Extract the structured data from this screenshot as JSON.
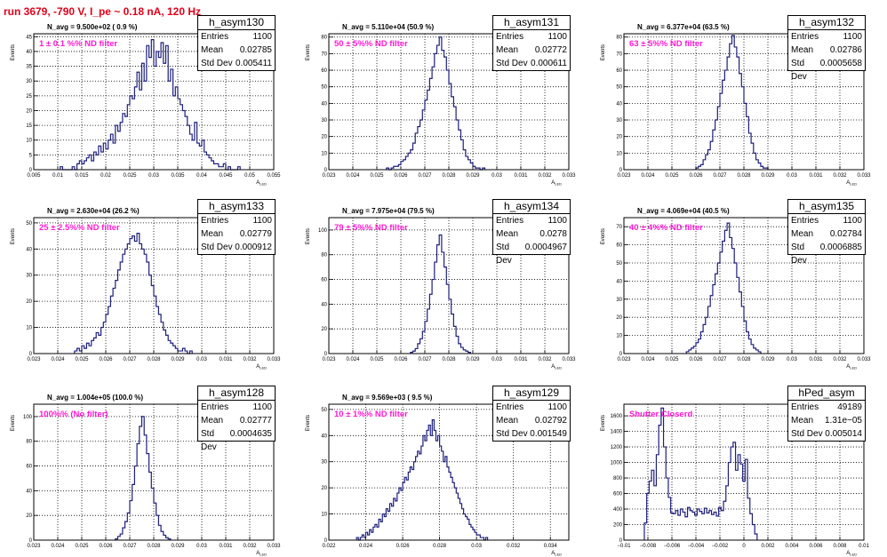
{
  "title": "run 3679,  -790 V, I_pe ~ 0.18 nA, 120 Hz",
  "ytitle": "Events",
  "xtitle": "A",
  "xtitle_sub": "LED",
  "stat_labels": {
    "entries": "Entries",
    "mean": "Mean",
    "std": "Std Dev"
  },
  "colors": {
    "hist": "#1d1f7d",
    "filter": "#ff19d2",
    "title": "#e0001a"
  },
  "chart_data": [
    {
      "type": "bar",
      "name": "h_asym130",
      "navg": "N_avg = 9.500e+02 ( 0.9 %)",
      "filter": "1 ± 0.1 %% ND filter",
      "entries": "1100",
      "mean": "0.02785",
      "std": "0.005411",
      "xlim": [
        0.005,
        0.055
      ],
      "ylim": [
        0,
        46
      ],
      "xticks": [
        0.005,
        0.01,
        0.015,
        0.02,
        0.025,
        0.03,
        0.035,
        0.04,
        0.045,
        0.05,
        0.055
      ],
      "yticks": [
        0,
        5,
        10,
        15,
        20,
        25,
        30,
        35,
        40,
        45
      ],
      "bins": {
        "start": 0.0105,
        "width": 0.0005,
        "counts": [
          1,
          0,
          0,
          0,
          0,
          1,
          0,
          2,
          3,
          2,
          3,
          4,
          5,
          3,
          6,
          5,
          8,
          6,
          9,
          7,
          10,
          12,
          9,
          15,
          13,
          16,
          19,
          18,
          22,
          25,
          24,
          28,
          33,
          27,
          36,
          30,
          42,
          38,
          44,
          35,
          40,
          38,
          43,
          36,
          42,
          30,
          34,
          25,
          28,
          24,
          22,
          20,
          18,
          15,
          12,
          10,
          16,
          9,
          8,
          10,
          6,
          5,
          4,
          3,
          2,
          2,
          1,
          1,
          2,
          0,
          1,
          0,
          0,
          0,
          1
        ]
      }
    },
    {
      "type": "bar",
      "name": "h_asym131",
      "navg": "N_avg = 5.110e+04 (50.9 %)",
      "filter": "50 ± 5%% ND filter",
      "entries": "1100",
      "mean": "0.02772",
      "std": "0.000611",
      "xlim": [
        0.023,
        0.033
      ],
      "ylim": [
        0,
        82
      ],
      "xticks": [
        0.023,
        0.024,
        0.025,
        0.026,
        0.027,
        0.028,
        0.029,
        0.03,
        0.031,
        0.032,
        0.033
      ],
      "yticks": [
        0,
        10,
        20,
        30,
        40,
        50,
        60,
        70,
        80
      ],
      "bins": {
        "start": 0.0254,
        "width": 0.0001,
        "counts": [
          1,
          0,
          1,
          2,
          2,
          3,
          5,
          6,
          8,
          10,
          12,
          16,
          22,
          26,
          30,
          36,
          42,
          48,
          55,
          62,
          70,
          75,
          80,
          72,
          68,
          60,
          52,
          44,
          38,
          30,
          24,
          18,
          12,
          8,
          6,
          4,
          2,
          1,
          1,
          0,
          1
        ]
      }
    },
    {
      "type": "bar",
      "name": "h_asym132",
      "navg": "N_avg = 6.377e+04 (63.5 %)",
      "filter": "63 ± 5%% ND filter",
      "entries": "1100",
      "mean": "0.02786",
      "std": "0.0005658",
      "xlim": [
        0.023,
        0.033
      ],
      "ylim": [
        0,
        82
      ],
      "xticks": [
        0.023,
        0.024,
        0.025,
        0.026,
        0.027,
        0.028,
        0.029,
        0.03,
        0.031,
        0.032,
        0.033
      ],
      "yticks": [
        0,
        10,
        20,
        30,
        40,
        50,
        60,
        70,
        80
      ],
      "bins": {
        "start": 0.026,
        "width": 0.0001,
        "counts": [
          1,
          2,
          3,
          6,
          9,
          12,
          17,
          24,
          30,
          38,
          46,
          54,
          60,
          68,
          76,
          81,
          74,
          68,
          58,
          50,
          40,
          32,
          22,
          16,
          10,
          6,
          4,
          2,
          1,
          1
        ]
      }
    },
    {
      "type": "bar",
      "name": "h_asym133",
      "navg": "N_avg = 2.630e+04 (26.2 %)",
      "filter": "25 ± 2.5%% ND filter",
      "entries": "1100",
      "mean": "0.02779",
      "std": "0.000912",
      "xlim": [
        0.023,
        0.033
      ],
      "ylim": [
        0,
        52
      ],
      "xticks": [
        0.023,
        0.024,
        0.025,
        0.026,
        0.027,
        0.028,
        0.029,
        0.03,
        0.031,
        0.032,
        0.033
      ],
      "yticks": [
        0,
        10,
        20,
        30,
        40,
        50
      ],
      "bins": {
        "start": 0.0247,
        "width": 0.0001,
        "counts": [
          1,
          2,
          1,
          3,
          2,
          4,
          3,
          5,
          6,
          8,
          7,
          10,
          12,
          15,
          18,
          22,
          25,
          28,
          32,
          35,
          38,
          40,
          42,
          44,
          45,
          43,
          46,
          42,
          40,
          38,
          35,
          30,
          26,
          22,
          18,
          15,
          12,
          9,
          7,
          5,
          4,
          3,
          2,
          1,
          1,
          2,
          1,
          0,
          1
        ]
      }
    },
    {
      "type": "bar",
      "name": "h_asym134",
      "navg": "N_avg = 7.975e+04 (79.5 %)",
      "filter": "79 ± 5%% ND filter",
      "entries": "1100",
      "mean": "0.0278",
      "std": "0.0004967",
      "xlim": [
        0.023,
        0.033
      ],
      "ylim": [
        0,
        110
      ],
      "xticks": [
        0.023,
        0.024,
        0.025,
        0.026,
        0.027,
        0.028,
        0.029,
        0.03,
        0.031,
        0.032,
        0.033
      ],
      "yticks": [
        0,
        20,
        40,
        60,
        80,
        100
      ],
      "bins": {
        "start": 0.0264,
        "width": 0.0001,
        "counts": [
          1,
          2,
          4,
          8,
          12,
          18,
          26,
          36,
          48,
          60,
          74,
          88,
          96,
          82,
          70,
          56,
          44,
          32,
          22,
          14,
          8,
          5,
          3,
          2,
          1
        ]
      }
    },
    {
      "type": "bar",
      "name": "h_asym135",
      "navg": "N_avg = 4.069e+04 (40.5 %)",
      "filter": "40 ± 4%% ND filter",
      "entries": "1100",
      "mean": "0.02784",
      "std": "0.0006885",
      "xlim": [
        0.023,
        0.033
      ],
      "ylim": [
        0,
        75
      ],
      "xticks": [
        0.023,
        0.024,
        0.025,
        0.026,
        0.027,
        0.028,
        0.029,
        0.03,
        0.031,
        0.032,
        0.033
      ],
      "yticks": [
        0,
        10,
        20,
        30,
        40,
        50,
        60,
        70
      ],
      "bins": {
        "start": 0.0256,
        "width": 0.0001,
        "counts": [
          1,
          2,
          3,
          4,
          6,
          8,
          12,
          16,
          20,
          26,
          32,
          38,
          44,
          50,
          56,
          62,
          68,
          72,
          64,
          58,
          50,
          42,
          34,
          26,
          18,
          12,
          8,
          5,
          3,
          2,
          1
        ]
      }
    },
    {
      "type": "bar",
      "name": "h_asym128",
      "navg": "N_avg = 1.004e+05 (100.0 %)",
      "filter": "100%% (No filter)",
      "entries": "1100",
      "mean": "0.02777",
      "std": "0.0004635",
      "xlim": [
        0.023,
        0.033
      ],
      "ylim": [
        0,
        110
      ],
      "xticks": [
        0.023,
        0.024,
        0.025,
        0.026,
        0.027,
        0.028,
        0.029,
        0.03,
        0.031,
        0.032,
        0.033
      ],
      "yticks": [
        0,
        20,
        40,
        60,
        80,
        100
      ],
      "bins": {
        "start": 0.0264,
        "width": 0.0001,
        "counts": [
          1,
          3,
          5,
          10,
          15,
          22,
          32,
          45,
          60,
          78,
          92,
          100,
          85,
          70,
          55,
          42,
          30,
          20,
          12,
          7,
          4,
          2,
          1
        ]
      }
    },
    {
      "type": "bar",
      "name": "h_asym129",
      "navg": "N_avg = 9.569e+03 ( 9.5 %)",
      "filter": "10 ± 1%% ND filter",
      "entries": "1100",
      "mean": "0.02792",
      "std": "0.001549",
      "xlim": [
        0.022,
        0.035
      ],
      "ylim": [
        0,
        52
      ],
      "xticks": [
        0.022,
        0.024,
        0.026,
        0.028,
        0.03,
        0.032,
        0.034
      ],
      "yticks": [
        0,
        10,
        20,
        30,
        40,
        50
      ],
      "bins": {
        "start": 0.0235,
        "width": 0.0001,
        "counts": [
          1,
          0,
          1,
          2,
          1,
          3,
          2,
          4,
          3,
          5,
          6,
          5,
          8,
          7,
          10,
          9,
          12,
          11,
          14,
          13,
          16,
          15,
          18,
          20,
          19,
          22,
          24,
          23,
          26,
          28,
          27,
          30,
          32,
          34,
          33,
          36,
          40,
          38,
          42,
          44,
          40,
          46,
          42,
          38,
          40,
          36,
          34,
          30,
          32,
          28,
          26,
          24,
          22,
          20,
          18,
          16,
          14,
          12,
          10,
          9,
          8,
          6,
          5,
          4,
          3,
          2,
          2,
          1,
          1,
          0,
          1
        ]
      }
    },
    {
      "type": "bar",
      "name": "hPed_asym",
      "navg": "",
      "filter": "Shutter Closerd",
      "entries": "49189",
      "mean": "1.31e−05",
      "std": "0.005014",
      "xlim": [
        -0.01,
        0.01
      ],
      "ylim": [
        0,
        1750
      ],
      "xticks": [
        -0.01,
        -0.008,
        -0.006,
        -0.004,
        -0.002,
        0,
        0.002,
        0.004,
        0.006,
        0.008,
        0.01
      ],
      "yticks": [
        0,
        200,
        400,
        600,
        800,
        1000,
        1200,
        1400,
        1600
      ],
      "bins": {
        "start": -0.0083,
        "width": 0.0002,
        "counts": [
          220,
          600,
          760,
          900,
          700,
          1100,
          1480,
          1700,
          1200,
          800,
          550,
          350,
          340,
          380,
          320,
          400,
          360,
          300,
          420,
          380,
          360,
          320,
          400,
          370,
          340,
          410,
          350,
          380,
          330,
          360,
          310,
          420,
          380,
          500,
          700,
          1000,
          1200,
          1260,
          900,
          1100,
          980,
          760,
          1040,
          540,
          340,
          200,
          80
        ]
      }
    }
  ]
}
